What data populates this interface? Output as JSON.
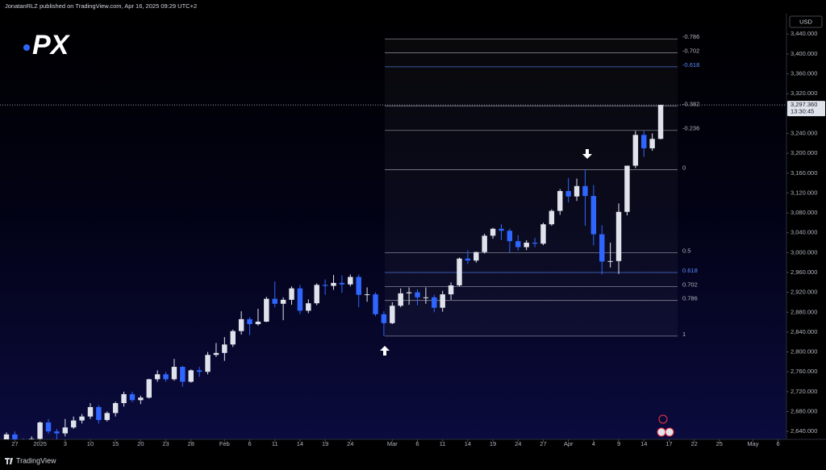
{
  "header": {
    "published": "JonatanRLZ published on TradingView.com, Apr 16, 2025 09:29 UTC+2"
  },
  "footer": {
    "brand": "TradingView"
  },
  "chart_data": {
    "type": "candlestick",
    "logo": "PX",
    "currency": "USD",
    "up_color": "#e0e3eb",
    "down_color": "#2f66ff",
    "xlim": [
      -0.77,
      93
    ],
    "ylim": [
      2624,
      3481
    ],
    "xticks": [
      {
        "value": 1,
        "label": "27"
      },
      {
        "value": 4,
        "label": "2025"
      },
      {
        "value": 7,
        "label": "3"
      },
      {
        "value": 10,
        "label": "10"
      },
      {
        "value": 13,
        "label": "15"
      },
      {
        "value": 16,
        "label": "20"
      },
      {
        "value": 19,
        "label": "23"
      },
      {
        "value": 22,
        "label": "28"
      },
      {
        "value": 26,
        "label": "Feb"
      },
      {
        "value": 29,
        "label": "6"
      },
      {
        "value": 32,
        "label": "11"
      },
      {
        "value": 35,
        "label": "14"
      },
      {
        "value": 38,
        "label": "19"
      },
      {
        "value": 41,
        "label": "24"
      },
      {
        "value": 46,
        "label": "Mar"
      },
      {
        "value": 49,
        "label": "6"
      },
      {
        "value": 52,
        "label": "11"
      },
      {
        "value": 55,
        "label": "14"
      },
      {
        "value": 58,
        "label": "19"
      },
      {
        "value": 61,
        "label": "24"
      },
      {
        "value": 64,
        "label": "27"
      },
      {
        "value": 67,
        "label": "Apr"
      },
      {
        "value": 70,
        "label": "4"
      },
      {
        "value": 73,
        "label": "9"
      },
      {
        "value": 76,
        "label": "14"
      },
      {
        "value": 79,
        "label": "17"
      },
      {
        "value": 82,
        "label": "22"
      },
      {
        "value": 85,
        "label": "25"
      },
      {
        "value": 89,
        "label": "May"
      },
      {
        "value": 92,
        "label": "6"
      }
    ],
    "yticks": [
      {
        "value": 2640,
        "label": "2,640.000"
      },
      {
        "value": 2680,
        "label": "2,680.000"
      },
      {
        "value": 2720,
        "label": "2,720.000"
      },
      {
        "value": 2760,
        "label": "2,760.000"
      },
      {
        "value": 2800,
        "label": "2,800.000"
      },
      {
        "value": 2840,
        "label": "2,840.000"
      },
      {
        "value": 2880,
        "label": "2,880.000"
      },
      {
        "value": 2920,
        "label": "2,920.000"
      },
      {
        "value": 2960,
        "label": "2,960.000"
      },
      {
        "value": 3000,
        "label": "3,000.000"
      },
      {
        "value": 3040,
        "label": "3,040.000"
      },
      {
        "value": 3080,
        "label": "3,080.000"
      },
      {
        "value": 3120,
        "label": "3,120.000"
      },
      {
        "value": 3160,
        "label": "3,160.000"
      },
      {
        "value": 3200,
        "label": "3,200.000"
      },
      {
        "value": 3240,
        "label": "3,240.000"
      },
      {
        "value": 3280,
        "label": "3,280.000"
      },
      {
        "value": 3320,
        "label": "3,320.000"
      },
      {
        "value": 3360,
        "label": "3,360.000"
      },
      {
        "value": 3400,
        "label": "3,400.000"
      },
      {
        "value": 3440,
        "label": "3,440.000"
      }
    ],
    "open": [
      2620,
      2634,
      2621,
      2606,
      2625,
      2658,
      2640,
      2636,
      2648,
      2662,
      2670,
      2689,
      2663,
      2677,
      2697,
      2715,
      2703,
      2708,
      2745,
      2755,
      2745,
      2770,
      2740,
      2763,
      2760,
      2794,
      2798,
      2815,
      2842,
      2866,
      2856,
      2861,
      2907,
      2897,
      2905,
      2928,
      2883,
      2898,
      2935,
      2933,
      2939,
      2936,
      2951,
      2915,
      2916,
      2876,
      2858,
      2893,
      2918,
      2920,
      2910,
      2910,
      2889,
      2916,
      2934,
      2988,
      2984,
      3001,
      3034,
      3048,
      3044,
      3023,
      3011,
      3020,
      3018,
      3057,
      3084,
      3124,
      3113,
      3134,
      3114,
      3037,
      2982,
      2983,
      3082,
      3175,
      3237,
      3210,
      3229
    ],
    "high": [
      2638,
      2640,
      2626,
      2630,
      2660,
      2665,
      2645,
      2665,
      2670,
      2675,
      2697,
      2693,
      2680,
      2700,
      2720,
      2720,
      2712,
      2746,
      2763,
      2760,
      2786,
      2772,
      2765,
      2770,
      2800,
      2818,
      2830,
      2845,
      2882,
      2870,
      2887,
      2911,
      2942,
      2910,
      2932,
      2935,
      2906,
      2938,
      2946,
      2955,
      2954,
      2956,
      2956,
      2930,
      2920,
      2882,
      2900,
      2928,
      2930,
      2926,
      2930,
      2915,
      2923,
      2940,
      2990,
      3005,
      3002,
      3038,
      3050,
      3057,
      3048,
      3035,
      3025,
      3030,
      3060,
      3087,
      3128,
      3150,
      3149,
      3167,
      3136,
      3055,
      3020,
      3099,
      3175,
      3245,
      3245,
      3240,
      3297
    ],
    "low": [
      2616,
      2616,
      2597,
      2603,
      2622,
      2635,
      2615,
      2630,
      2645,
      2656,
      2665,
      2656,
      2660,
      2670,
      2690,
      2699,
      2695,
      2706,
      2740,
      2740,
      2742,
      2730,
      2738,
      2750,
      2755,
      2790,
      2782,
      2810,
      2835,
      2834,
      2853,
      2860,
      2890,
      2864,
      2895,
      2876,
      2878,
      2894,
      2915,
      2925,
      2919,
      2932,
      2890,
      2901,
      2872,
      2832,
      2856,
      2890,
      2895,
      2894,
      2897,
      2880,
      2881,
      2905,
      2932,
      2977,
      2980,
      2998,
      3028,
      3025,
      3000,
      3004,
      3005,
      3011,
      3015,
      3054,
      3076,
      3101,
      3104,
      3054,
      3015,
      2956,
      2970,
      2957,
      3075,
      3170,
      3193,
      3205,
      3228
    ],
    "close": [
      2634,
      2621,
      2606,
      2625,
      2658,
      2640,
      2636,
      2648,
      2662,
      2670,
      2689,
      2663,
      2677,
      2697,
      2715,
      2703,
      2708,
      2745,
      2755,
      2745,
      2770,
      2740,
      2763,
      2760,
      2794,
      2798,
      2815,
      2842,
      2866,
      2856,
      2861,
      2907,
      2897,
      2905,
      2928,
      2883,
      2898,
      2935,
      2933,
      2939,
      2936,
      2951,
      2915,
      2916,
      2876,
      2858,
      2893,
      2918,
      2920,
      2910,
      2910,
      2889,
      2916,
      2934,
      2988,
      2984,
      3001,
      3034,
      3048,
      3044,
      3023,
      3011,
      3020,
      3018,
      3057,
      3084,
      3124,
      3113,
      3134,
      3114,
      3037,
      2982,
      2983,
      3082,
      3175,
      3237,
      3210,
      3229,
      3297.36
    ],
    "last_price": {
      "value": 3297.36,
      "label": "3,297.360"
    },
    "countdown": "13:30:45",
    "fibonacci": {
      "anchor_prices": [
        3167,
        2832
      ],
      "ratios": [
        -0.786,
        -0.702,
        -0.618,
        -0.382,
        -0.236,
        0,
        0.5,
        0.618,
        0.702,
        0.786,
        1
      ],
      "line_color": "#b2b5be",
      "highlight_color": "#5b8cff",
      "highlight_ratios": [
        -0.618,
        0.618
      ]
    }
  }
}
